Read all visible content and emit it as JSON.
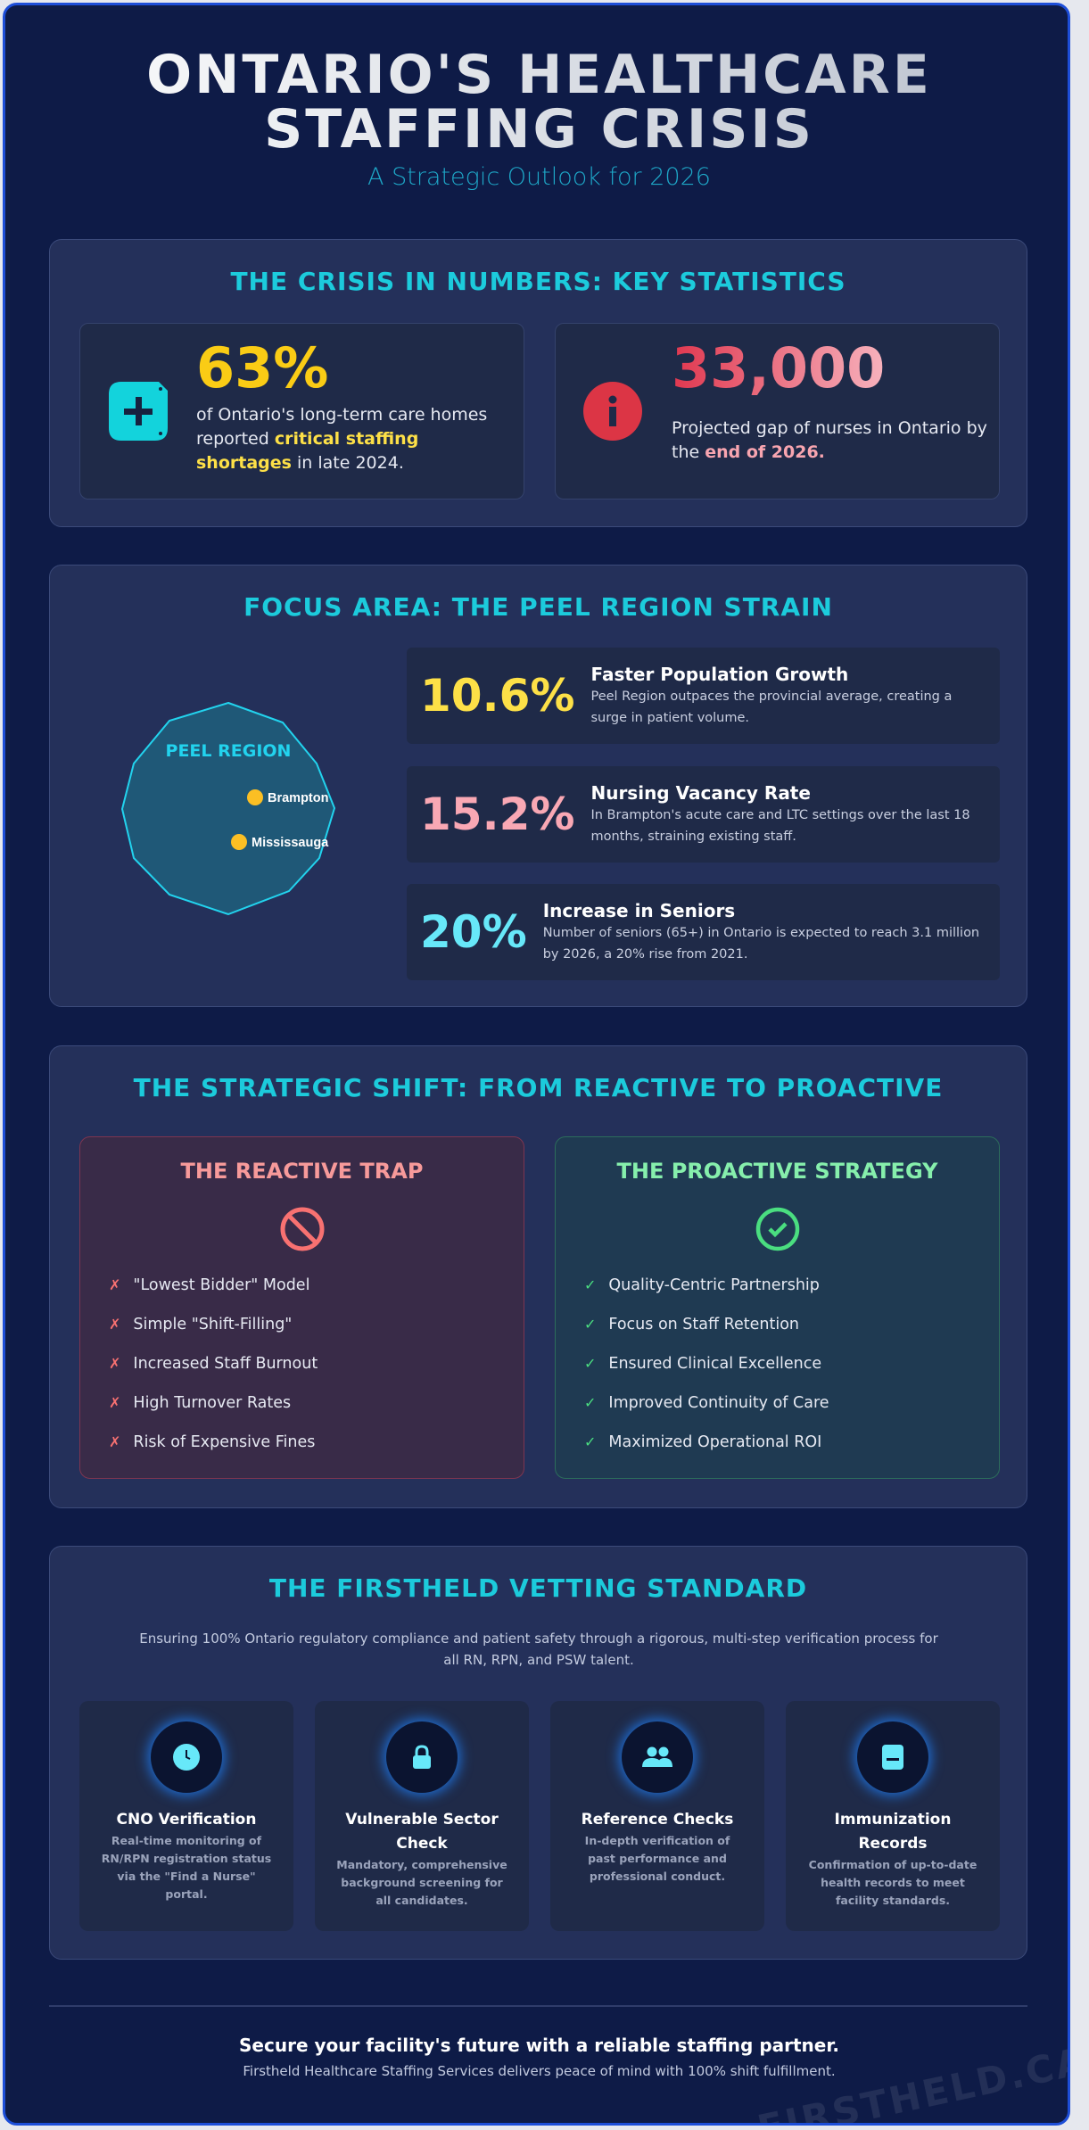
{
  "header": {
    "title_line1": "ONTARIO'S HEALTHCARE",
    "title_line2": "STAFFING CRISIS",
    "subtitle": "A Strategic Outlook for 2026"
  },
  "statistics": {
    "title": "THE CRISIS IN NUMBERS: KEY STATISTICS",
    "cards": [
      {
        "value": "63%",
        "text": [
          "of Ontario's long-term care homes reported ",
          "critical staffing shortages",
          " in late 2024."
        ]
      },
      {
        "value": "33,000",
        "text": [
          "Projected gap of nurses in Ontario by the ",
          "end of 2026."
        ]
      }
    ]
  },
  "peel": {
    "title": "FOCUS AREA: THE PEEL REGION STRAIN",
    "map_label": "PEEL REGION",
    "cities": [
      "Brampton",
      "Mississauga"
    ],
    "items": [
      {
        "value": "10.6%",
        "heading": "Faster Population Growth",
        "text": "Peel Region outpaces the provincial average, creating a surge in patient volume."
      },
      {
        "value": "15.2%",
        "heading": "Nursing Vacancy Rate",
        "text": "In Brampton's acute care and LTC settings over the last 18 months, straining existing staff."
      },
      {
        "value": "20%",
        "heading": "Increase in Seniors",
        "text": "Number of seniors (65+) in Ontario is expected to reach 3.1 million by 2026, a 20% rise from 2021."
      }
    ]
  },
  "shift": {
    "title": "THE STRATEGIC SHIFT: FROM REACTIVE TO PROACTIVE",
    "reactive": {
      "title": "THE REACTIVE TRAP",
      "items": [
        "\"Lowest Bidder\" Model",
        "Simple \"Shift-Filling\"",
        "Increased Staff Burnout",
        "High Turnover Rates",
        "Risk of Expensive Fines"
      ]
    },
    "proactive": {
      "title": "THE PROACTIVE STRATEGY",
      "items": [
        "Quality-Centric Partnership",
        "Focus on Staff Retention",
        "Ensured Clinical Excellence",
        "Improved Continuity of Care",
        "Maximized Operational ROI"
      ]
    }
  },
  "vetting": {
    "title": "THE FIRSTHELD VETTING STANDARD",
    "intro": "Ensuring 100% Ontario regulatory compliance and patient safety through a rigorous, multi-step verification process for all RN, RPN, and PSW talent.",
    "steps": [
      {
        "title": "CNO Verification",
        "text": "Real-time monitoring of RN/RPN registration status via the \"Find a Nurse\" portal."
      },
      {
        "title": "Vulnerable Sector Check",
        "text": "Mandatory, comprehensive background screening for all candidates."
      },
      {
        "title": "Reference Checks",
        "text": "In-depth verification of past performance and professional conduct."
      },
      {
        "title": "Immunization Records",
        "text": "Confirmation of up-to-date health records to meet facility standards."
      }
    ]
  },
  "footer": {
    "headline": "Secure your facility's future with a reliable staffing partner.",
    "text": "Firstheld Healthcare Staffing Services delivers peace of mind with 100% shift fulfillment.",
    "watermark": "FIRSTHELD.CA"
  }
}
